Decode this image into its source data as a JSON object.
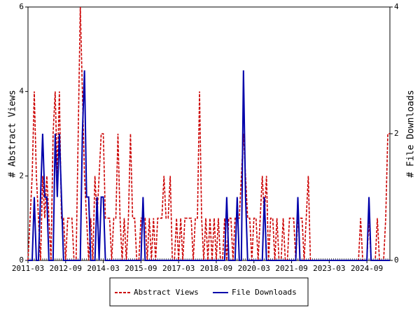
{
  "chart_data": {
    "type": "line",
    "y_label": "# Abstract Views",
    "y2_label": "# File Downloads",
    "categories": [
      "2011-03",
      null,
      null,
      null,
      null,
      null,
      null,
      null,
      null,
      null,
      null,
      null,
      null,
      null,
      null,
      null,
      null,
      null,
      "2012-09",
      null,
      null,
      null,
      null,
      null,
      null,
      null,
      null,
      null,
      null,
      null,
      null,
      null,
      null,
      null,
      null,
      null,
      "2014-03",
      null,
      null,
      null,
      null,
      null,
      null,
      null,
      null,
      null,
      null,
      null,
      null,
      null,
      null,
      null,
      null,
      null,
      "2015-09",
      null,
      null,
      null,
      null,
      null,
      null,
      null,
      null,
      null,
      null,
      null,
      null,
      null,
      null,
      null,
      null,
      null,
      "2017-03",
      null,
      null,
      null,
      null,
      null,
      null,
      null,
      null,
      null,
      null,
      null,
      null,
      null,
      null,
      null,
      null,
      null,
      "2018-09",
      null,
      null,
      null,
      null,
      null,
      null,
      null,
      null,
      null,
      null,
      null,
      null,
      null,
      null,
      null,
      null,
      null,
      "2020-03",
      null,
      null,
      null,
      null,
      null,
      null,
      null,
      null,
      null,
      null,
      null,
      null,
      null,
      null,
      null,
      null,
      null,
      "2021-09",
      null,
      null,
      null,
      null,
      null,
      null,
      null,
      null,
      null,
      null,
      null,
      null,
      null,
      null,
      null,
      null,
      null,
      "2023-03",
      null,
      null,
      null,
      null,
      null,
      null,
      null,
      null,
      null,
      null,
      null,
      null,
      null,
      null,
      null,
      null,
      null,
      "2024-09",
      null,
      null,
      null,
      null,
      null,
      null,
      null,
      null,
      null,
      null,
      null
    ],
    "series": [
      {
        "name": "Abstract Views",
        "color": "#cc0000",
        "dash": true,
        "axis": "y",
        "values": [
          0,
          1,
          2,
          4,
          2,
          1,
          0,
          2,
          1,
          2,
          1,
          0,
          3,
          4,
          2,
          4,
          1,
          1,
          0,
          1,
          1,
          1,
          0,
          0,
          3,
          6,
          4,
          2,
          1,
          0,
          1,
          0,
          2,
          1,
          2,
          3,
          3,
          1,
          1,
          1,
          0,
          1,
          1,
          3,
          1,
          0,
          1,
          0,
          1,
          3,
          1,
          1,
          0,
          0,
          1,
          1,
          1,
          0,
          1,
          0,
          1,
          0,
          1,
          1,
          1,
          2,
          1,
          1,
          2,
          0,
          0,
          1,
          0,
          1,
          0,
          1,
          1,
          1,
          1,
          0,
          1,
          1,
          4,
          1,
          0,
          1,
          0,
          1,
          0,
          1,
          0,
          1,
          0,
          0,
          1,
          0,
          1,
          1,
          0,
          1,
          1,
          1,
          2,
          3,
          2,
          1,
          1,
          0,
          1,
          1,
          0,
          1,
          2,
          1,
          2,
          0,
          1,
          1,
          0,
          1,
          0,
          0,
          1,
          0,
          0,
          1,
          1,
          1,
          0,
          1,
          1,
          1,
          0,
          1,
          2,
          0,
          0,
          0,
          0,
          0,
          0,
          0,
          0,
          0,
          0,
          0,
          0,
          0,
          0,
          0,
          0,
          0,
          0,
          0,
          0,
          0,
          0,
          0,
          0,
          1,
          0,
          0,
          0,
          1,
          0,
          0,
          0,
          1,
          0,
          0,
          0,
          1,
          3,
          3
        ]
      },
      {
        "name": "File Downloads",
        "color": "#0000aa",
        "dash": false,
        "axis": "y2",
        "values": [
          0,
          0,
          0,
          1,
          0,
          0,
          1,
          2,
          1,
          1,
          0,
          0,
          0,
          2,
          1,
          2,
          1,
          0,
          0,
          0,
          0,
          0,
          0,
          0,
          0,
          0,
          2,
          3,
          1,
          1,
          0,
          0,
          0,
          1,
          0,
          1,
          1,
          0,
          0,
          0,
          0,
          0,
          0,
          0,
          0,
          0,
          0,
          0,
          0,
          0,
          0,
          0,
          0,
          0,
          0,
          1,
          0,
          0,
          0,
          0,
          0,
          0,
          0,
          0,
          0,
          0,
          0,
          0,
          0,
          0,
          0,
          0,
          0,
          0,
          0,
          0,
          0,
          0,
          0,
          0,
          0,
          0,
          0,
          0,
          0,
          0,
          0,
          0,
          0,
          0,
          0,
          0,
          0,
          0,
          0,
          1,
          0,
          0,
          0,
          0,
          1,
          0,
          0,
          3,
          1,
          0,
          0,
          0,
          0,
          0,
          0,
          0,
          0,
          1,
          0,
          0,
          0,
          0,
          0,
          0,
          0,
          0,
          0,
          0,
          0,
          0,
          0,
          0,
          0,
          1,
          0,
          0,
          0,
          0,
          0,
          0,
          0,
          0,
          0,
          0,
          0,
          0,
          0,
          0,
          0,
          0,
          0,
          0,
          0,
          0,
          0,
          0,
          0,
          0,
          0,
          0,
          0,
          0,
          0,
          0,
          0,
          0,
          0,
          1,
          0,
          0,
          0,
          0,
          0,
          0,
          0,
          0,
          0,
          0
        ]
      }
    ],
    "ylim": [
      0,
      6
    ],
    "yticks": [
      0,
      2,
      4,
      6
    ],
    "y2lim": [
      0,
      4
    ],
    "y2ticks": [
      0,
      2,
      4
    ],
    "legend": "bottom"
  }
}
